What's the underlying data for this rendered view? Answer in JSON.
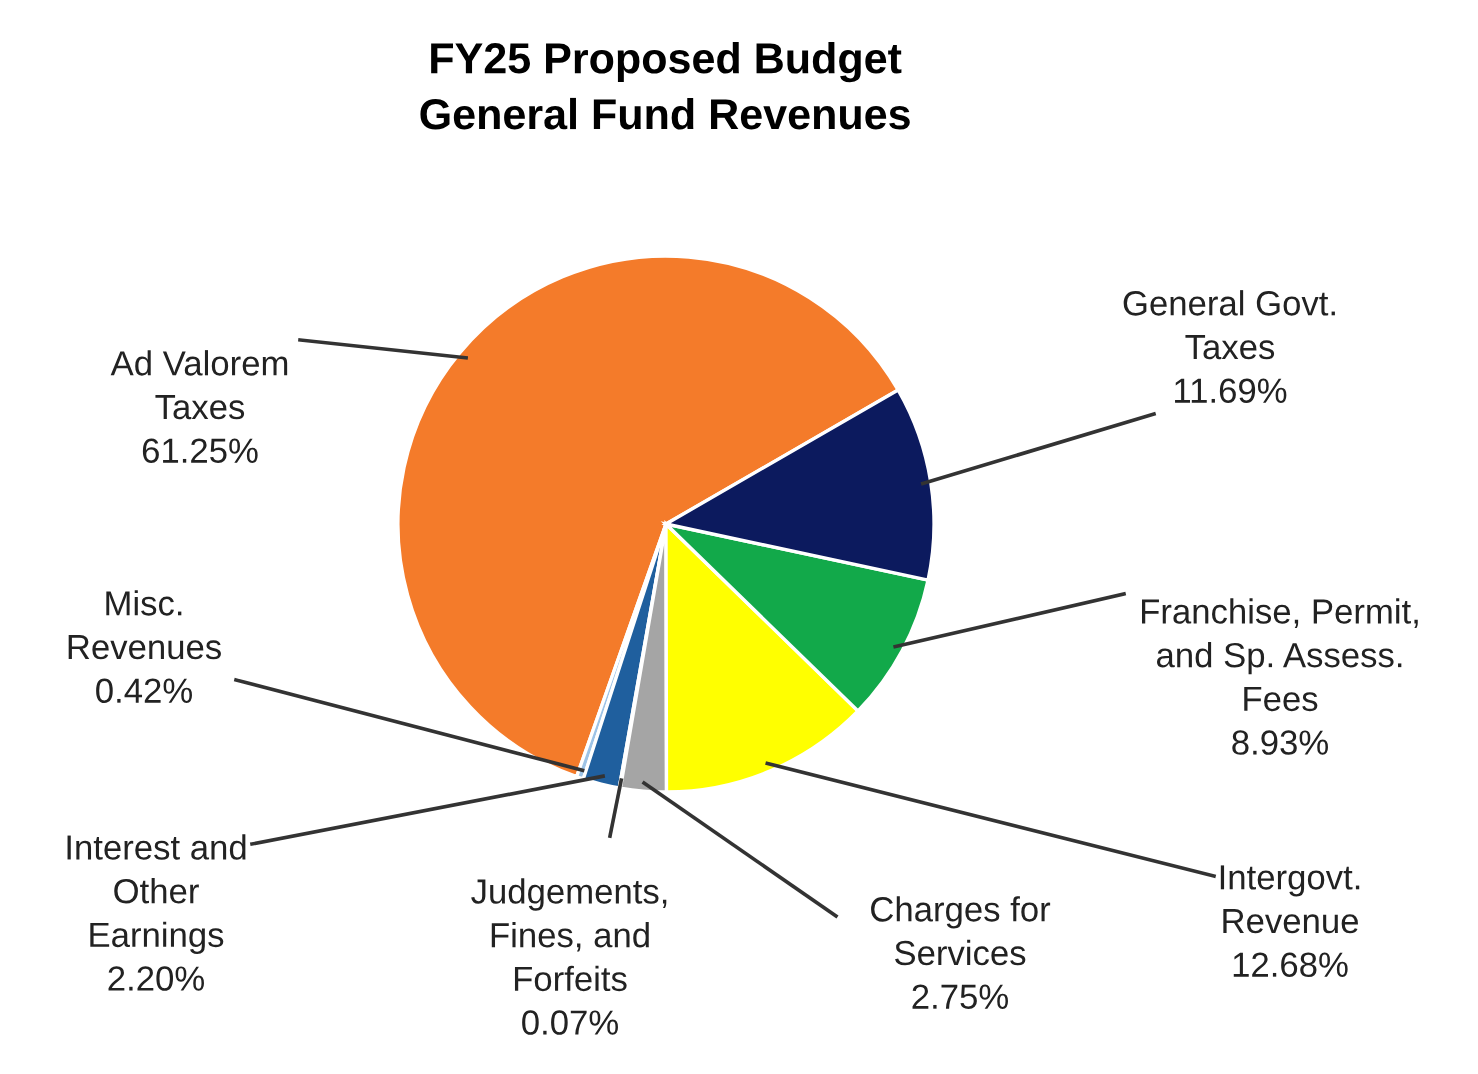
{
  "chart_data": {
    "type": "pie",
    "title": "FY25 Proposed Budget\nGeneral Fund Revenues",
    "categories": [
      "Ad Valorem\nTaxes",
      "Misc.\nRevenues",
      "Interest and\nOther\nEarnings",
      "Judgements,\nFines, and\nForfeits",
      "Charges for\nServices",
      "Intergovt.\nRevenue",
      "Franchise, Permit,\nand Sp. Assess.\nFees",
      "General Govt.\nTaxes"
    ],
    "values": [
      61.25,
      0.42,
      2.2,
      0.07,
      2.75,
      12.68,
      8.93,
      11.69
    ],
    "value_labels": [
      "61.25%",
      "0.42%",
      "2.20%",
      "0.07%",
      "2.75%",
      "12.68%",
      "8.93%",
      "11.69%"
    ],
    "colors": [
      "#f47b2a",
      "#9dc3e6",
      "#1f5f9e",
      "#264478",
      "#a5a5a5",
      "#ffff00",
      "#12a94a",
      "#0c1a5e"
    ],
    "legend": false
  }
}
